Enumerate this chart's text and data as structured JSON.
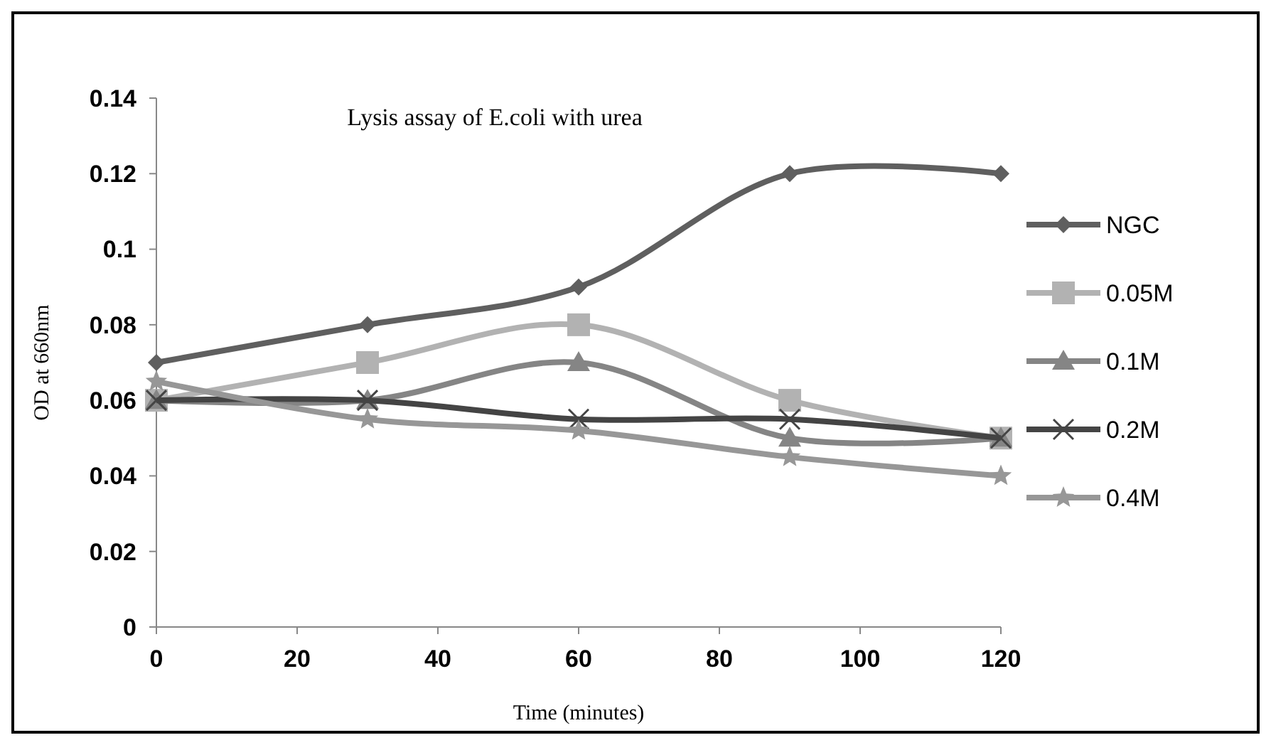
{
  "chart_data": {
    "type": "line",
    "title": "Lysis assay of E.coli with urea",
    "xlabel": "Time (minutes)",
    "ylabel": "OD at 660nm",
    "x": [
      0,
      30,
      60,
      90,
      120
    ],
    "xlim": [
      0,
      120
    ],
    "xticks": [
      0,
      20,
      40,
      60,
      80,
      100,
      120
    ],
    "ylim": [
      0,
      0.14
    ],
    "yticks": [
      0,
      0.02,
      0.04,
      0.06,
      0.08,
      0.1,
      0.12,
      0.14
    ],
    "legend": "right",
    "grid": false,
    "series": [
      {
        "name": "NGC",
        "color": "#5f5f5f",
        "marker": "diamond",
        "values": [
          0.07,
          0.08,
          0.09,
          0.12,
          0.12
        ]
      },
      {
        "name": "0.05M",
        "color": "#b2b2b2",
        "marker": "square",
        "values": [
          0.06,
          0.07,
          0.08,
          0.06,
          0.05
        ]
      },
      {
        "name": "0.1M",
        "color": "#858585",
        "marker": "triangle",
        "values": [
          0.06,
          0.06,
          0.07,
          0.05,
          0.05
        ]
      },
      {
        "name": "0.2M",
        "color": "#444444",
        "marker": "cross",
        "values": [
          0.06,
          0.06,
          0.055,
          0.055,
          0.05
        ]
      },
      {
        "name": "0.4M",
        "color": "#979797",
        "marker": "star",
        "values": [
          0.065,
          0.055,
          0.052,
          0.045,
          0.04
        ]
      }
    ]
  }
}
